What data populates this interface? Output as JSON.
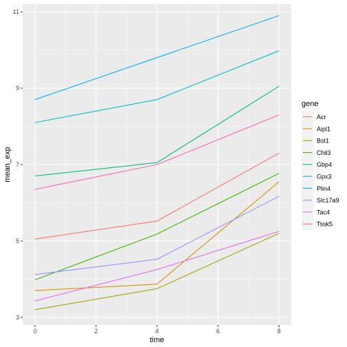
{
  "chart_data": {
    "type": "line",
    "title": "",
    "xlabel": "time",
    "ylabel": "mean_exp",
    "x": [
      0,
      4,
      8
    ],
    "xticks": [
      0,
      2,
      4,
      6,
      8
    ],
    "xtick_labels": [
      "0",
      "2",
      "4",
      "6",
      "8"
    ],
    "yticks": [
      3,
      5,
      7,
      9,
      11
    ],
    "ytick_labels": [
      "3",
      "5",
      "7",
      "9",
      "11"
    ],
    "xlim": [
      -0.4,
      8.4
    ],
    "ylim": [
      2.8,
      11.2
    ],
    "grid": true,
    "legend_title": "gene",
    "legend_position": "right",
    "series": [
      {
        "name": "Acr",
        "color": "#F8766D",
        "values": [
          5.05,
          5.52,
          7.3
        ]
      },
      {
        "name": "Aipl1",
        "color": "#D89000",
        "values": [
          3.7,
          3.87,
          6.55
        ]
      },
      {
        "name": "Bst1",
        "color": "#A3A500",
        "values": [
          3.2,
          3.75,
          5.2
        ]
      },
      {
        "name": "Chil3",
        "color": "#39B600",
        "values": [
          3.98,
          5.18,
          6.77
        ]
      },
      {
        "name": "Gbp4",
        "color": "#00BF7D",
        "values": [
          6.7,
          7.05,
          9.05
        ]
      },
      {
        "name": "Gpx3",
        "color": "#00BFC4",
        "values": [
          8.1,
          8.7,
          9.98
        ]
      },
      {
        "name": "Plin4",
        "color": "#00B0F6",
        "values": [
          8.7,
          9.8,
          10.9
        ]
      },
      {
        "name": "Slc17a9",
        "color": "#9590FF",
        "values": [
          4.12,
          4.52,
          6.17
        ]
      },
      {
        "name": "Tac4",
        "color": "#E76BF3",
        "values": [
          3.43,
          4.25,
          5.25
        ]
      },
      {
        "name": "Tssk5",
        "color": "#FF62BC",
        "values": [
          6.35,
          7.0,
          8.3
        ]
      }
    ]
  }
}
